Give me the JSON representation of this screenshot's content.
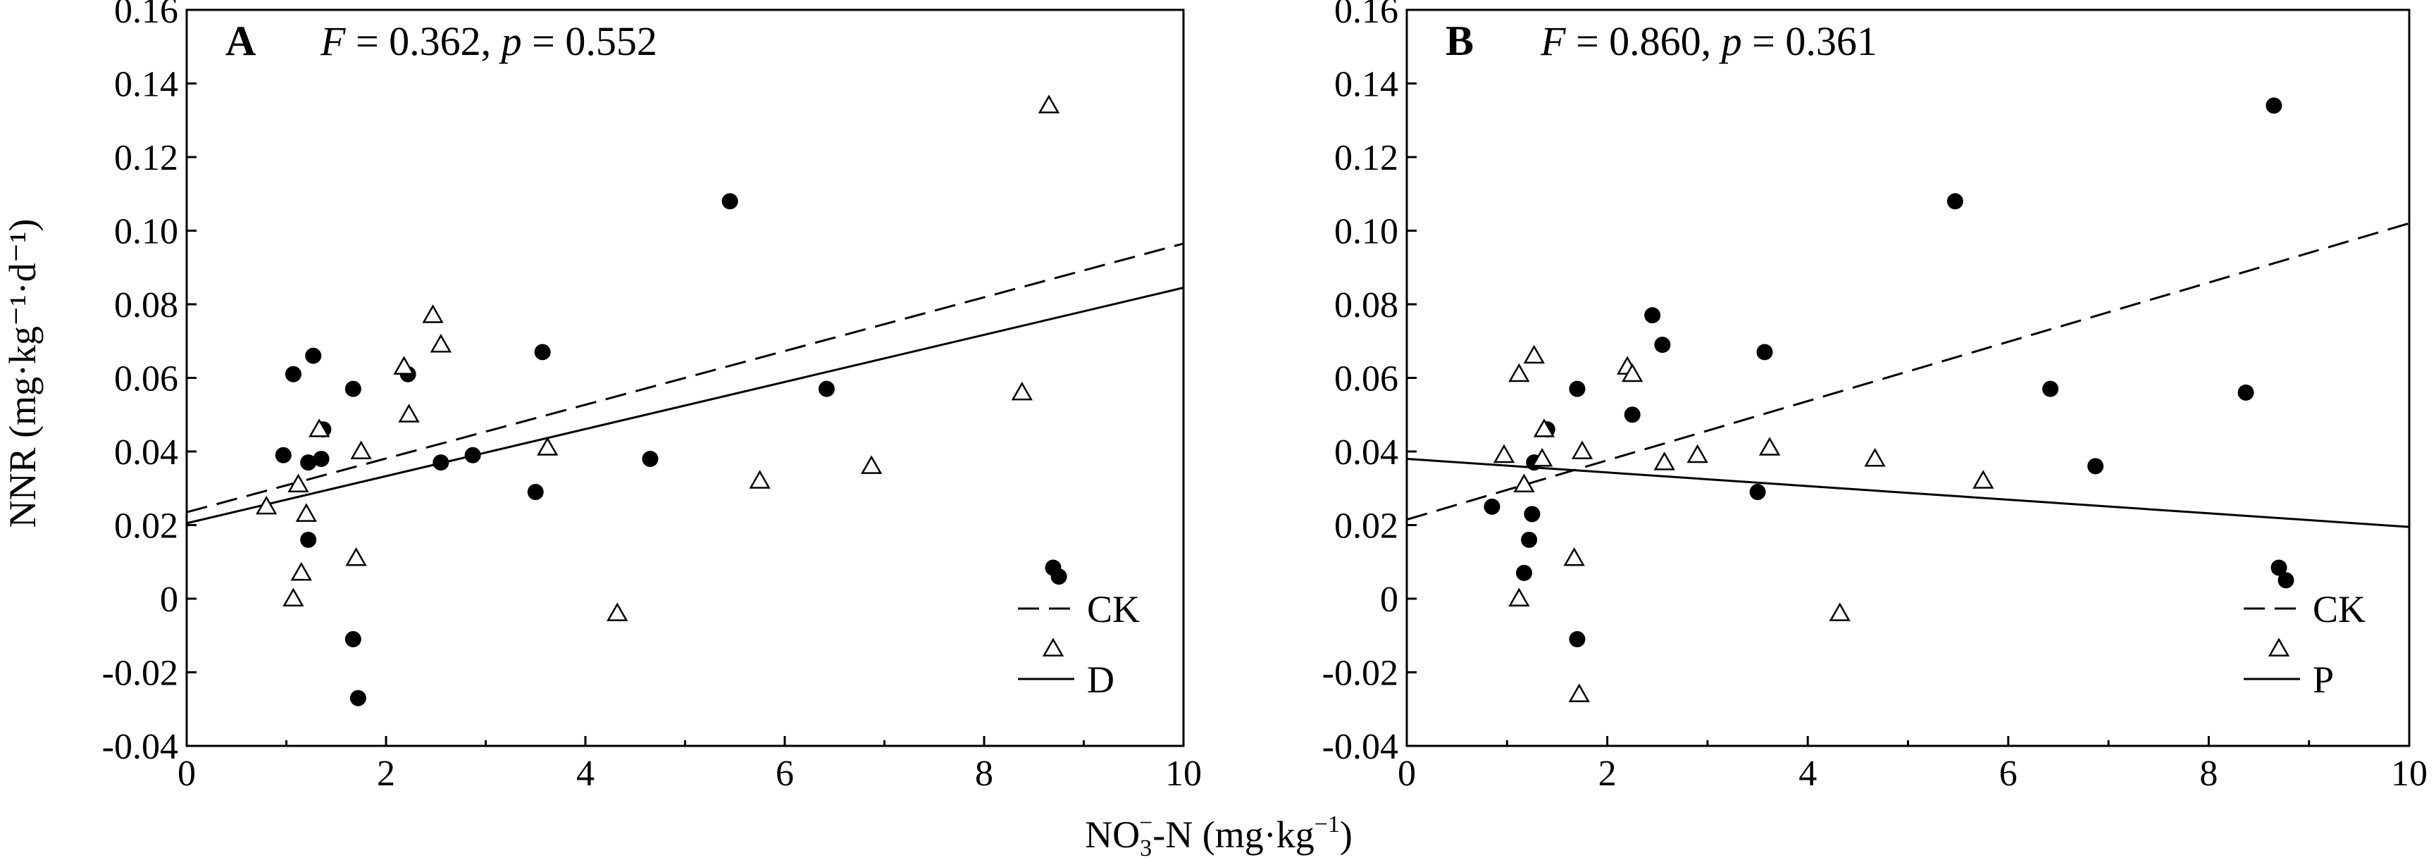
{
  "figure": {
    "xlabel_main": "NO",
    "xlabel_sub": "3",
    "xlabel_sup": "−",
    "xlabel_rest": "-N (mg·kg",
    "xlabel_unit_sup": "−1",
    "xlabel_close": ")",
    "ylabel": "NNR (mg·kg⁻¹·d⁻¹)"
  },
  "chart_data": [
    {
      "type": "scatter",
      "panel": "A",
      "stat_F_label": "F",
      "stat_F_value": " = 0.362, ",
      "stat_p_label": "p",
      "stat_p_value": " = 0.552",
      "xlim": [
        0,
        10
      ],
      "ylim": [
        -0.04,
        0.16
      ],
      "x_ticks": [
        "0",
        "2",
        "4",
        "6",
        "8",
        "10"
      ],
      "y_ticks": [
        "-0.04",
        "-0.02",
        "0",
        "0.02",
        "0.04",
        "0.06",
        "0.08",
        "0.10",
        "0.12",
        "0.14",
        "0.16"
      ],
      "grid": false,
      "legend_position": "bottom-right",
      "legend": [
        {
          "label": "CK",
          "marker": "filled-circle",
          "line": "dashed"
        },
        {
          "label": "D",
          "marker": "open-triangle",
          "line": "solid"
        }
      ],
      "series": [
        {
          "name": "CK",
          "marker": "filled-circle",
          "points": [
            [
              0.97,
              0.039
            ],
            [
              1.07,
              0.061
            ],
            [
              1.22,
              0.016
            ],
            [
              1.22,
              0.037
            ],
            [
              1.27,
              0.066
            ],
            [
              1.35,
              0.038
            ],
            [
              1.37,
              0.046
            ],
            [
              1.67,
              0.057
            ],
            [
              1.67,
              -0.011
            ],
            [
              1.72,
              -0.027
            ],
            [
              2.22,
              0.061
            ],
            [
              2.55,
              0.037
            ],
            [
              2.87,
              0.039
            ],
            [
              3.5,
              0.029
            ],
            [
              3.57,
              0.067
            ],
            [
              4.65,
              0.038
            ],
            [
              5.45,
              0.108
            ],
            [
              6.42,
              0.057
            ],
            [
              8.75,
              0.006
            ]
          ]
        },
        {
          "name": "D",
          "marker": "open-triangle",
          "points": [
            [
              0.8,
              0.025
            ],
            [
              1.07,
              0.0
            ],
            [
              1.12,
              0.031
            ],
            [
              1.15,
              0.007
            ],
            [
              1.2,
              0.023
            ],
            [
              1.33,
              0.046
            ],
            [
              1.7,
              0.011
            ],
            [
              1.75,
              0.04
            ],
            [
              2.18,
              0.063
            ],
            [
              2.23,
              0.05
            ],
            [
              2.47,
              0.077
            ],
            [
              2.55,
              0.069
            ],
            [
              3.62,
              0.041
            ],
            [
              4.32,
              -0.004
            ],
            [
              5.75,
              0.032
            ],
            [
              6.87,
              0.036
            ],
            [
              8.38,
              0.056
            ],
            [
              8.65,
              0.134
            ]
          ]
        }
      ],
      "fits": [
        {
          "name": "CK",
          "style": "dashed",
          "x": [
            0,
            10
          ],
          "y": [
            0.0235,
            0.0965
          ]
        },
        {
          "name": "D",
          "style": "solid",
          "x": [
            0,
            10
          ],
          "y": [
            0.0205,
            0.0845
          ]
        }
      ]
    },
    {
      "type": "scatter",
      "panel": "B",
      "stat_F_label": "F",
      "stat_F_value": " = 0.860, ",
      "stat_p_label": "p",
      "stat_p_value": " = 0.361",
      "xlim": [
        0,
        10
      ],
      "ylim": [
        -0.04,
        0.16
      ],
      "x_ticks": [
        "0",
        "2",
        "4",
        "6",
        "8",
        "10"
      ],
      "y_ticks": [
        "-0.04",
        "-0.02",
        "0",
        "0.02",
        "0.04",
        "0.06",
        "0.08",
        "0.10",
        "0.12",
        "0.14",
        "0.16"
      ],
      "grid": false,
      "legend_position": "bottom-right",
      "legend": [
        {
          "label": "CK",
          "marker": "filled-circle",
          "line": "dashed"
        },
        {
          "label": "P",
          "marker": "open-triangle",
          "line": "solid"
        }
      ],
      "series": [
        {
          "name": "CK",
          "marker": "filled-circle",
          "points": [
            [
              0.85,
              0.025
            ],
            [
              1.17,
              0.007
            ],
            [
              1.22,
              0.016
            ],
            [
              1.25,
              0.023
            ],
            [
              1.27,
              0.037
            ],
            [
              1.4,
              0.046
            ],
            [
              1.7,
              0.057
            ],
            [
              1.7,
              -0.011
            ],
            [
              2.25,
              0.05
            ],
            [
              2.45,
              0.077
            ],
            [
              2.55,
              0.069
            ],
            [
              3.5,
              0.029
            ],
            [
              3.57,
              0.067
            ],
            [
              5.47,
              0.108
            ],
            [
              6.42,
              0.057
            ],
            [
              6.87,
              0.036
            ],
            [
              8.37,
              0.056
            ],
            [
              8.65,
              0.134
            ],
            [
              8.77,
              0.005
            ]
          ]
        },
        {
          "name": "P",
          "marker": "open-triangle",
          "points": [
            [
              0.97,
              0.039
            ],
            [
              1.12,
              0.0
            ],
            [
              1.12,
              0.061
            ],
            [
              1.17,
              0.031
            ],
            [
              1.27,
              0.066
            ],
            [
              1.35,
              0.038
            ],
            [
              1.37,
              0.046
            ],
            [
              1.67,
              0.011
            ],
            [
              1.72,
              -0.026
            ],
            [
              1.75,
              0.04
            ],
            [
              2.2,
              0.063
            ],
            [
              2.25,
              0.061
            ],
            [
              2.57,
              0.037
            ],
            [
              2.9,
              0.039
            ],
            [
              3.62,
              0.041
            ],
            [
              4.32,
              -0.004
            ],
            [
              4.67,
              0.038
            ],
            [
              5.75,
              0.032
            ]
          ]
        }
      ],
      "fits": [
        {
          "name": "CK",
          "style": "dashed",
          "x": [
            0,
            10
          ],
          "y": [
            0.0215,
            0.102
          ]
        },
        {
          "name": "P",
          "style": "solid",
          "x": [
            0,
            10
          ],
          "y": [
            0.038,
            0.0195
          ]
        }
      ]
    }
  ]
}
